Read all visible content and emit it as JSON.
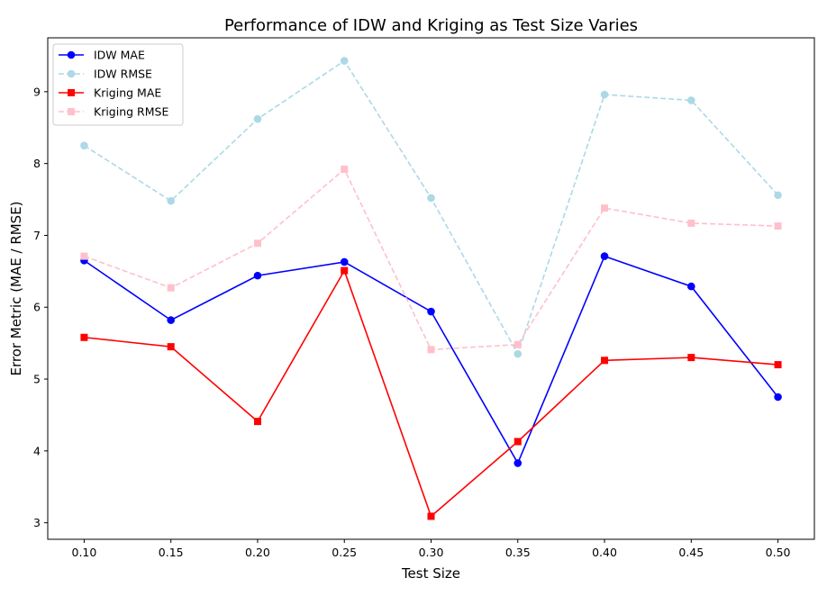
{
  "chart_data": {
    "type": "line",
    "title": "Performance of IDW and Kriging as Test Size Varies",
    "xlabel": "Test Size",
    "ylabel": "Error Metric (MAE / RMSE)",
    "x": [
      0.1,
      0.15,
      0.2,
      0.25,
      0.3,
      0.35,
      0.4,
      0.45,
      0.5
    ],
    "x_tick_labels": [
      "0.10",
      "0.15",
      "0.20",
      "0.25",
      "0.30",
      "0.35",
      "0.40",
      "0.45",
      "0.50"
    ],
    "y_ticks": [
      3,
      4,
      5,
      6,
      7,
      8,
      9
    ],
    "y_tick_labels": [
      "3",
      "4",
      "5",
      "6",
      "7",
      "8",
      "9"
    ],
    "xlim": [
      0.079,
      0.521
    ],
    "ylim": [
      2.77,
      9.75
    ],
    "grid": false,
    "legend_position": "top-left",
    "series": [
      {
        "name": "IDW MAE",
        "color": "#0000ff",
        "line_style": "solid",
        "marker": "circle",
        "values": [
          6.65,
          5.82,
          6.44,
          6.63,
          5.94,
          3.83,
          6.71,
          6.29,
          4.75
        ]
      },
      {
        "name": "IDW RMSE",
        "color": "#add8e6",
        "line_style": "dashed",
        "marker": "circle",
        "values": [
          8.25,
          7.48,
          8.62,
          9.43,
          7.52,
          5.35,
          8.96,
          8.88,
          7.56
        ]
      },
      {
        "name": "Kriging MAE",
        "color": "#ff0000",
        "line_style": "solid",
        "marker": "square",
        "values": [
          5.58,
          5.45,
          4.41,
          6.51,
          3.09,
          4.13,
          5.26,
          5.3,
          5.2
        ]
      },
      {
        "name": "Kriging RMSE",
        "color": "#ffc0cb",
        "line_style": "dashed",
        "marker": "square",
        "values": [
          6.71,
          6.27,
          6.89,
          7.92,
          5.41,
          5.48,
          7.38,
          7.17,
          7.13
        ]
      }
    ]
  }
}
